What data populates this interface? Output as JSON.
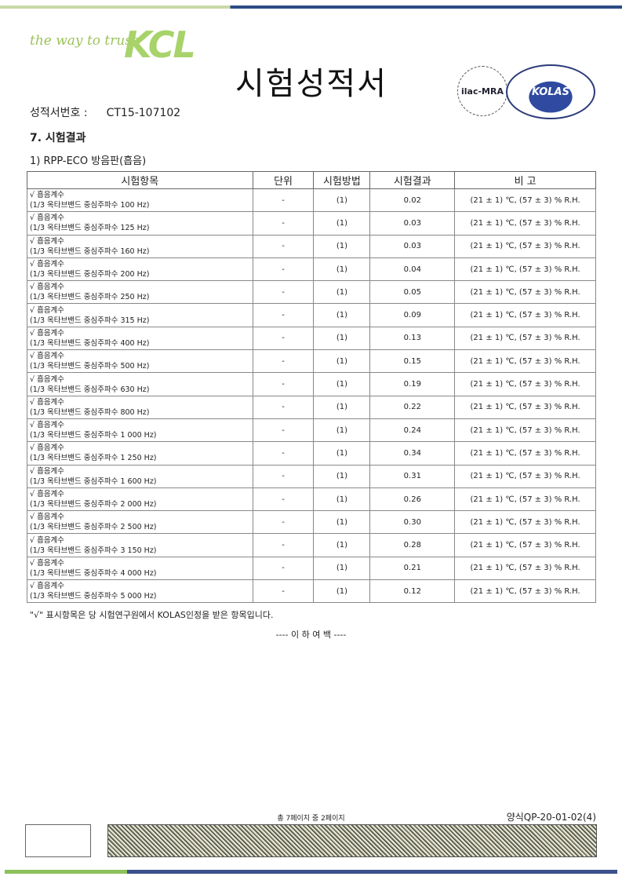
{
  "header": {
    "slogan": "the way to trust",
    "logo": "KCL",
    "title": "시험성적서",
    "ilac": "ilac-MRA",
    "kolas": "KOLAS"
  },
  "cert": {
    "label": "성적서번호 :",
    "value": "CT15-107102"
  },
  "section": "7. 시험결과",
  "subsection": "1) RPP-ECO 방음판(흡음)",
  "table": {
    "headers": [
      "시험항목",
      "단위",
      "시험방법",
      "시험결과",
      "비  고"
    ],
    "rows": [
      {
        "item": "√ 흡음계수",
        "freq": "(1/3 옥타브밴드 중심주파수 100 Hz)",
        "unit": "-",
        "method": "(1)",
        "result": "0.02",
        "note": "(21 ± 1) ℃, (57 ± 3) % R.H."
      },
      {
        "item": "√ 흡음계수",
        "freq": "(1/3 옥타브밴드 중심주파수 125 Hz)",
        "unit": "-",
        "method": "(1)",
        "result": "0.03",
        "note": "(21 ± 1) ℃, (57 ± 3) % R.H."
      },
      {
        "item": "√ 흡음계수",
        "freq": "(1/3 옥타브밴드 중심주파수 160 Hz)",
        "unit": "-",
        "method": "(1)",
        "result": "0.03",
        "note": "(21 ± 1) ℃, (57 ± 3) % R.H."
      },
      {
        "item": "√ 흡음계수",
        "freq": "(1/3 옥타브밴드 중심주파수 200 Hz)",
        "unit": "-",
        "method": "(1)",
        "result": "0.04",
        "note": "(21 ± 1) ℃, (57 ± 3) % R.H."
      },
      {
        "item": "√ 흡음계수",
        "freq": "(1/3 옥타브밴드 중심주파수 250 Hz)",
        "unit": "-",
        "method": "(1)",
        "result": "0.05",
        "note": "(21 ± 1) ℃, (57 ± 3) % R.H."
      },
      {
        "item": "√ 흡음계수",
        "freq": "(1/3 옥타브밴드 중심주파수 315 Hz)",
        "unit": "-",
        "method": "(1)",
        "result": "0.09",
        "note": "(21 ± 1) ℃, (57 ± 3) % R.H."
      },
      {
        "item": "√ 흡음계수",
        "freq": "(1/3 옥타브밴드 중심주파수 400 Hz)",
        "unit": "-",
        "method": "(1)",
        "result": "0.13",
        "note": "(21 ± 1) ℃, (57 ± 3) % R.H."
      },
      {
        "item": "√ 흡음계수",
        "freq": "(1/3 옥타브밴드 중심주파수 500 Hz)",
        "unit": "-",
        "method": "(1)",
        "result": "0.15",
        "note": "(21 ± 1) ℃, (57 ± 3) % R.H."
      },
      {
        "item": "√ 흡음계수",
        "freq": "(1/3 옥타브밴드 중심주파수 630 Hz)",
        "unit": "-",
        "method": "(1)",
        "result": "0.19",
        "note": "(21 ± 1) ℃, (57 ± 3) % R.H."
      },
      {
        "item": "√ 흡음계수",
        "freq": "(1/3 옥타브밴드 중심주파수 800 Hz)",
        "unit": "-",
        "method": "(1)",
        "result": "0.22",
        "note": "(21 ± 1) ℃, (57 ± 3) % R.H."
      },
      {
        "item": "√ 흡음계수",
        "freq": "(1/3 옥타브밴드 중심주파수 1 000 Hz)",
        "unit": "-",
        "method": "(1)",
        "result": "0.24",
        "note": "(21 ± 1) ℃, (57 ± 3) % R.H."
      },
      {
        "item": "√ 흡음계수",
        "freq": "(1/3 옥타브밴드 중심주파수 1 250 Hz)",
        "unit": "-",
        "method": "(1)",
        "result": "0.34",
        "note": "(21 ± 1) ℃, (57 ± 3) % R.H."
      },
      {
        "item": "√ 흡음계수",
        "freq": "(1/3 옥타브밴드 중심주파수 1 600 Hz)",
        "unit": "-",
        "method": "(1)",
        "result": "0.31",
        "note": "(21 ± 1) ℃, (57 ± 3) % R.H."
      },
      {
        "item": "√ 흡음계수",
        "freq": "(1/3 옥타브밴드 중심주파수 2 000 Hz)",
        "unit": "-",
        "method": "(1)",
        "result": "0.26",
        "note": "(21 ± 1) ℃, (57 ± 3) % R.H."
      },
      {
        "item": "√ 흡음계수",
        "freq": "(1/3 옥타브밴드 중심주파수 2 500 Hz)",
        "unit": "-",
        "method": "(1)",
        "result": "0.30",
        "note": "(21 ± 1) ℃, (57 ± 3) % R.H."
      },
      {
        "item": "√ 흡음계수",
        "freq": "(1/3 옥타브밴드 중심주파수 3 150 Hz)",
        "unit": "-",
        "method": "(1)",
        "result": "0.28",
        "note": "(21 ± 1) ℃, (57 ± 3) % R.H."
      },
      {
        "item": "√ 흡음계수",
        "freq": "(1/3 옥타브밴드 중심주파수 4 000 Hz)",
        "unit": "-",
        "method": "(1)",
        "result": "0.21",
        "note": "(21 ± 1) ℃, (57 ± 3) % R.H."
      },
      {
        "item": "√ 흡음계수",
        "freq": "(1/3 옥타브밴드 중심주파수 5 000 Hz)",
        "unit": "-",
        "method": "(1)",
        "result": "0.12",
        "note": "(21 ± 1) ℃, (57 ± 3) % R.H."
      }
    ]
  },
  "note": "\"√\" 표시항목은 당 시험연구원에서 KOLAS인정을 받은 항목입니다.",
  "end": "---- 이  하  여  백 ----",
  "footer": {
    "page": "총 7페이지 중 2페이지",
    "form": "양식QP-20-01-02(4)"
  },
  "colors": {
    "brand_green": "#a8d36b",
    "brand_blue": "#2d4a86"
  }
}
